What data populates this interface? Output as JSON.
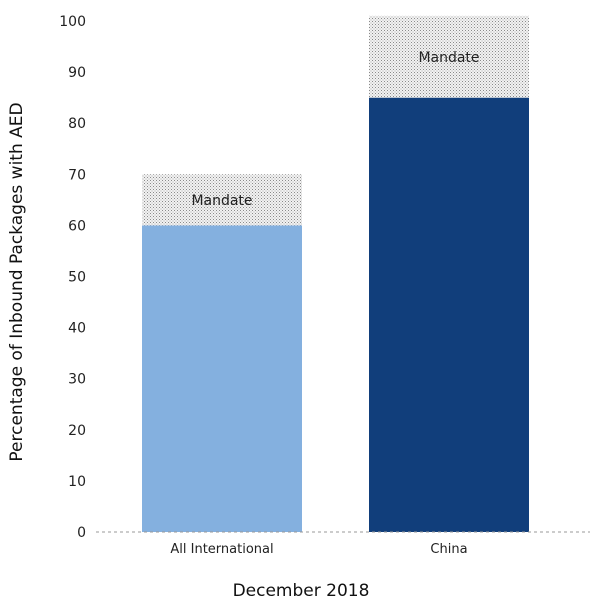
{
  "chart_data": {
    "type": "bar",
    "stacked": true,
    "title": "",
    "xlabel": "December 2018",
    "ylabel": "Percentage of Inbound Packages with AED",
    "ylim": [
      0,
      100
    ],
    "yticks": [
      0,
      10,
      20,
      30,
      40,
      50,
      60,
      70,
      80,
      90,
      100
    ],
    "categories": [
      "All International",
      "China"
    ],
    "series": [
      {
        "values": [
          60,
          85
        ],
        "colors": [
          "#84b0df",
          "#113e7b"
        ]
      },
      {
        "values": [
          10,
          16
        ],
        "colors": [
          "#e8e8e8",
          "#e8e8e8"
        ],
        "label": "Mandate"
      }
    ],
    "grid": false,
    "legend": "none"
  }
}
